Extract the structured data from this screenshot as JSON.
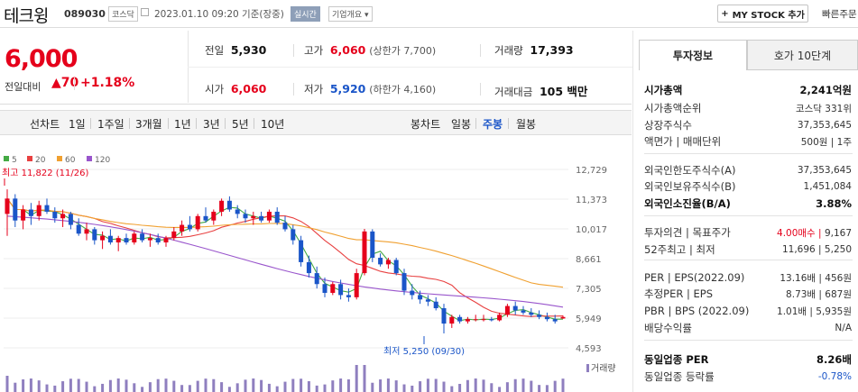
{
  "header": {
    "stock_name": "테크윙",
    "stock_code": "089030",
    "market_tag": "코스닥",
    "datetime": "2023.01.10 09:20  기준(장중)",
    "realtime_tag": "실시간",
    "corp_info": "기업개요",
    "corp_info_arrow": "▾",
    "mystock_button": "MY STOCK 추가",
    "mystock_plus": "+",
    "quick_order": "빠른주문"
  },
  "summary": {
    "price": "6,000",
    "change_label": "전일대비",
    "change_value": "▲70",
    "change_pct": "+1.18%"
  },
  "stats": {
    "prev_close": {
      "label": "전일",
      "value": "5,930"
    },
    "high": {
      "label": "고가",
      "value": "6,060",
      "sub": "(상한가 7,700)"
    },
    "volume": {
      "label": "거래량",
      "value": "17,393"
    },
    "open": {
      "label": "시가",
      "value": "6,060"
    },
    "low": {
      "label": "저가",
      "value": "5,920",
      "sub": "(하한가 4,160)"
    },
    "trade_value": {
      "label": "거래대금",
      "value": "105 백만"
    }
  },
  "period_bar": {
    "line_chart": "선차트",
    "periods": [
      "1일",
      "1주일",
      "3개월",
      "1년",
      "3년",
      "5년",
      "10년"
    ],
    "candle_chart": "봉차트",
    "candle_periods": [
      "일봉",
      "주봉",
      "월봉"
    ],
    "candle_active": "주봉"
  },
  "chart_data": {
    "type": "candlestick",
    "legend": [
      {
        "name": "5",
        "color": "#44aa44"
      },
      {
        "name": "20",
        "color": "#e84040"
      },
      {
        "name": "60",
        "color": "#f0a030"
      },
      {
        "name": "120",
        "color": "#9955cc"
      }
    ],
    "y_ticks": [
      "12,729",
      "11,373",
      "10,017",
      "8,661",
      "7,305",
      "5,949",
      "4,593"
    ],
    "ylim": [
      4593,
      12729
    ],
    "high_annotation": "최고 11,822 (11/26)",
    "low_annotation": "최저 5,250 (09/30)",
    "volume_label": "거래량",
    "candles": [
      [
        10700,
        11822,
        9700,
        11400
      ],
      [
        11400,
        11600,
        10100,
        10400
      ],
      [
        10400,
        11100,
        10000,
        10900
      ],
      [
        10900,
        11200,
        10200,
        10600
      ],
      [
        10600,
        11300,
        10400,
        11100
      ],
      [
        11100,
        11400,
        10700,
        10800
      ],
      [
        10800,
        11000,
        10300,
        10500
      ],
      [
        10500,
        10900,
        10100,
        10700
      ],
      [
        10700,
        10800,
        10000,
        10200
      ],
      [
        10200,
        10500,
        9700,
        9800
      ],
      [
        9800,
        10300,
        9500,
        10000
      ],
      [
        10000,
        10100,
        9300,
        9500
      ],
      [
        9500,
        9900,
        9100,
        9700
      ],
      [
        9700,
        10000,
        9300,
        9400
      ],
      [
        9400,
        9700,
        9000,
        9600
      ],
      [
        9600,
        9800,
        9300,
        9400
      ],
      [
        9400,
        9900,
        9300,
        9800
      ],
      [
        9800,
        10000,
        9400,
        9500
      ],
      [
        9500,
        9800,
        9200,
        9600
      ],
      [
        9600,
        9800,
        9300,
        9400
      ],
      [
        9400,
        9700,
        9200,
        9600
      ],
      [
        9600,
        10100,
        9500,
        9900
      ],
      [
        9900,
        10400,
        9700,
        10200
      ],
      [
        10200,
        10600,
        9900,
        10000
      ],
      [
        10000,
        10700,
        9900,
        10600
      ],
      [
        10600,
        11000,
        10300,
        10400
      ],
      [
        10400,
        10900,
        10200,
        10800
      ],
      [
        10800,
        11400,
        10600,
        11300
      ],
      [
        11300,
        11500,
        10800,
        10900
      ],
      [
        10900,
        11100,
        10500,
        10700
      ],
      [
        10700,
        10900,
        10300,
        10500
      ],
      [
        10500,
        10800,
        10200,
        10600
      ],
      [
        10600,
        10800,
        10300,
        10400
      ],
      [
        10400,
        10900,
        10300,
        10800
      ],
      [
        10800,
        11000,
        10200,
        10300
      ],
      [
        10300,
        10600,
        9900,
        10000
      ],
      [
        10000,
        10200,
        9300,
        9500
      ],
      [
        9500,
        9700,
        8300,
        8500
      ],
      [
        8500,
        8800,
        7800,
        8000
      ],
      [
        8000,
        8300,
        7300,
        7500
      ],
      [
        7500,
        7800,
        6900,
        7100
      ],
      [
        7100,
        7600,
        7000,
        7500
      ],
      [
        7500,
        7700,
        6800,
        7000
      ],
      [
        7000,
        7300,
        6700,
        6900
      ],
      [
        6900,
        8200,
        6800,
        8000
      ],
      [
        8000,
        10017,
        7900,
        9900
      ],
      [
        9900,
        10000,
        8500,
        8700
      ],
      [
        8700,
        8900,
        8300,
        8400
      ],
      [
        8400,
        8700,
        8200,
        8600
      ],
      [
        8600,
        8700,
        7900,
        8000
      ],
      [
        8000,
        8200,
        7000,
        7200
      ],
      [
        7200,
        7500,
        6800,
        7000
      ],
      [
        7000,
        7200,
        6600,
        6800
      ],
      [
        6800,
        7000,
        6500,
        6700
      ],
      [
        6700,
        6900,
        6300,
        6400
      ],
      [
        6400,
        6600,
        5250,
        5700
      ],
      [
        5700,
        6100,
        5500,
        6000
      ],
      [
        6000,
        6100,
        5700,
        5800
      ],
      [
        5800,
        6000,
        5700,
        5900
      ],
      [
        5900,
        6100,
        5800,
        5900
      ],
      [
        5900,
        6100,
        5800,
        5900
      ],
      [
        5900,
        6000,
        5800,
        5850
      ],
      [
        5850,
        6200,
        5800,
        6100
      ],
      [
        6100,
        6600,
        6000,
        6500
      ],
      [
        6500,
        6700,
        6100,
        6300
      ],
      [
        6300,
        6500,
        6100,
        6200
      ],
      [
        6200,
        6400,
        6000,
        6100
      ],
      [
        6100,
        6300,
        5900,
        6000
      ],
      [
        6000,
        6200,
        5800,
        5900
      ],
      [
        5900,
        6100,
        5700,
        5800
      ],
      [
        5930,
        6060,
        5920,
        6000
      ]
    ]
  },
  "right_panel": {
    "tab_invest": "투자정보",
    "tab_hoga": "호가 10단계",
    "rows": [
      {
        "label": "시가총액",
        "value": "2,241억원",
        "bold": true
      },
      {
        "label": "시가총액순위",
        "value": "코스닥 331위"
      },
      {
        "label": "상장주식수",
        "value": "37,353,645"
      },
      {
        "label": "액면가 | 매매단위",
        "value": "500원 | 1주"
      },
      {
        "label": "외국인한도주식수(A)",
        "value": "37,353,645"
      },
      {
        "label": "외국인보유주식수(B)",
        "value": "1,451,084"
      },
      {
        "label": "외국인소진율(B/A)",
        "value": "3.88%",
        "bold": true
      },
      {
        "label": "투자의견 | 목표주가",
        "value_red": "4.00매수",
        "value": "9,167"
      },
      {
        "label": "52주최고 | 최저",
        "value": "11,696 | 5,250"
      },
      {
        "label": "PER | EPS(2022.09)",
        "value": "13.16배 | 456원"
      },
      {
        "label": "추정PER | EPS",
        "value": "8.73배 | 687원"
      },
      {
        "label": "PBR | BPS (2022.09)",
        "value": "1.01배 | 5,935원"
      },
      {
        "label": "배당수익률",
        "value": "N/A"
      },
      {
        "label": "동일업종 PER",
        "value": "8.26배",
        "bold": true
      },
      {
        "label": "동일업종 등락률",
        "value": "-0.78%",
        "blue": true
      }
    ]
  }
}
